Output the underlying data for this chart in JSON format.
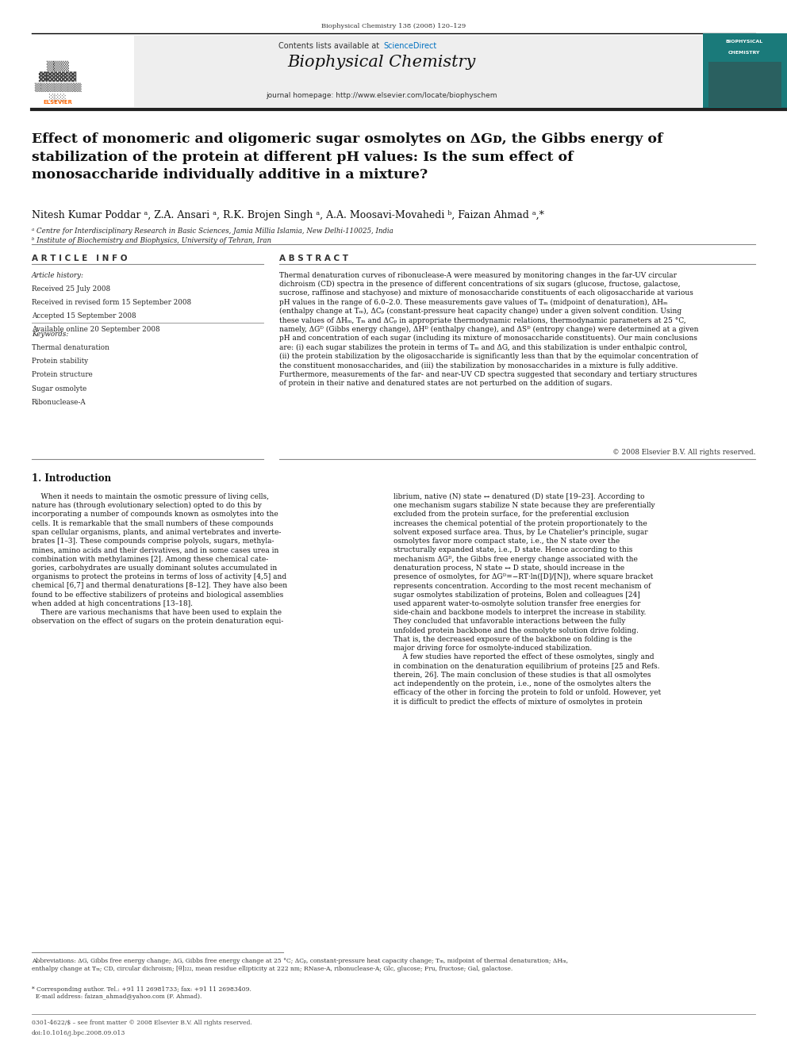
{
  "page_width": 9.92,
  "page_height": 13.23,
  "bg_color": "#ffffff",
  "journal_header": "Biophysical Chemistry 138 (2008) 120–129",
  "journal_name": "Biophysical Chemistry",
  "contents_text": "Contents lists available at ScienceDirect",
  "journal_url": "journal homepage: http://www.elsevier.com/locate/biophyschem",
  "title": "Effect of monomeric and oligomeric sugar osmolytes on ΔGᴅ, the Gibbs energy of\nstabilization of the protein at different pH values: Is the sum effect of\nmonosaccharide individually additive in a mixture?",
  "authors": "Nitesh Kumar Poddar ᵃ, Z.A. Ansari ᵃ, R.K. Brojen Singh ᵃ, A.A. Moosavi-Movahedi ᵇ, Faizan Ahmad ᵃ,*",
  "affil_a": "ᵃ Centre for Interdisciplinary Research in Basic Sciences, Jamia Millia Islamia, New Delhi-110025, India",
  "affil_b": "ᵇ Institute of Biochemistry and Biophysics, University of Tehran, Iran",
  "article_info_header": "A R T I C L E   I N F O",
  "abstract_header": "A B S T R A C T",
  "article_history_label": "Article history:",
  "received1": "Received 25 July 2008",
  "received2": "Received in revised form 15 September 2008",
  "accepted": "Accepted 15 September 2008",
  "available": "Available online 20 September 2008",
  "keywords_label": "Keywords:",
  "keyword1": "Thermal denaturation",
  "keyword2": "Protein stability",
  "keyword3": "Protein structure",
  "keyword4": "Sugar osmolyte",
  "keyword5": "Ribonuclease-A",
  "abstract_text": "Thermal denaturation curves of ribonuclease-A were measured by monitoring changes in the far-UV circular\ndichroism (CD) spectra in the presence of different concentrations of six sugars (glucose, fructose, galactose,\nsucrose, raffinose and stachyose) and mixture of monosaccharide constituents of each oligosaccharide at various\npH values in the range of 6.0–2.0. These measurements gave values of Tₘ (midpoint of denaturation), ΔHₘ\n(enthalpy change at Tₘ), ΔCₚ (constant-pressure heat capacity change) under a given solvent condition. Using\nthese values of ΔHₘ, Tₘ and ΔCₚ in appropriate thermodynamic relations, thermodynamic parameters at 25 °C,\nnamely, ΔGᴰ (Gibbs energy change), ΔHᴰ (enthalpy change), and ΔSᴰ (entropy change) were determined at a given\npH and concentration of each sugar (including its mixture of monosaccharide constituents). Our main conclusions\nare: (i) each sugar stabilizes the protein in terms of Tₘ and ΔG, and this stabilization is under enthalpic control,\n(ii) the protein stabilization by the oligosaccharide is significantly less than that by the equimolar concentration of\nthe constituent monosaccharides, and (iii) the stabilization by monosaccharides in a mixture is fully additive.\nFurthermore, measurements of the far- and near-UV CD spectra suggested that secondary and tertiary structures\nof protein in their native and denatured states are not perturbed on the addition of sugars.",
  "copyright": "© 2008 Elsevier B.V. All rights reserved.",
  "section1_title": "1. Introduction",
  "intro_col1": "    When it needs to maintain the osmotic pressure of living cells,\nnature has (through evolutionary selection) opted to do this by\nincorporating a number of compounds known as osmolytes into the\ncells. It is remarkable that the small numbers of these compounds\nspan cellular organisms, plants, and animal vertebrates and inverte-\nbrates [1–3]. These compounds comprise polyols, sugars, methyla-\nmines, amino acids and their derivatives, and in some cases urea in\ncombination with methylamines [2]. Among these chemical cate-\ngories, carbohydrates are usually dominant solutes accumulated in\norganisms to protect the proteins in terms of loss of activity [4,5] and\nchemical [6,7] and thermal denaturations [8–12]. They have also been\nfound to be effective stabilizers of proteins and biological assemblies\nwhen added at high concentrations [13–18].\n    There are various mechanisms that have been used to explain the\nobservation on the effect of sugars on the protein denaturation equi-",
  "intro_col2": "librium, native (N) state ↔ denatured (D) state [19–23]. According to\none mechanism sugars stabilize N state because they are preferentially\nexcluded from the protein surface, for the preferential exclusion\nincreases the chemical potential of the protein proportionately to the\nsolvent exposed surface area. Thus, by Le Chatelier's principle, sugar\nosmolytes favor more compact state, i.e., the N state over the\nstructurally expanded state, i.e., D state. Hence according to this\nmechanism ΔGᴰ, the Gibbs free energy change associated with the\ndenaturation process, N state ↔ D state, should increase in the\npresence of osmolytes, for ΔGᴰ=−RT·ln([D]/[N]), where square bracket\nrepresents concentration. According to the most recent mechanism of\nsugar osmolytes stabilization of proteins, Bolen and colleagues [24]\nused apparent water-to-osmolyte solution transfer free energies for\nside-chain and backbone models to interpret the increase in stability.\nThey concluded that unfavorable interactions between the fully\nunfolded protein backbone and the osmolyte solution drive folding.\nThat is, the decreased exposure of the backbone on folding is the\nmajor driving force for osmolyte-induced stabilization.\n    A few studies have reported the effect of these osmolytes, singly and\nin combination on the denaturation equilibrium of proteins [25 and Refs.\ntherein, 26]. The main conclusion of these studies is that all osmolytes\nact independently on the protein, i.e., none of the osmolytes alters the\nefficacy of the other in forcing the protein to fold or unfold. However, yet\nit is difficult to predict the effects of mixture of osmolytes in protein",
  "footnote_abbrev": "Abbreviations: ΔG, Gibbs free energy change; ΔG, Gibbs free energy change at 25 °C; ΔCₚ, constant-pressure heat capacity change; Tₘ, midpoint of thermal denaturation; ΔHₘ,\nenthalpy change at Tₘ; CD, circular dichroism; [θ]₂₂₂, mean residue ellipticity at 222 nm; RNase-A, ribonuclease-A; Glc, glucose; Fru, fructose; Gal, galactose.",
  "footnote_corr": "* Corresponding author. Tel.: +91 11 26981733; fax: +91 11 26983409.\n  E-mail address: faizan_ahmad@yahoo.com (F. Ahmad).",
  "footer_left": "0301-4622/$ – see front matter © 2008 Elsevier B.V. All rights reserved.",
  "footer_doi": "doi:10.1016/j.bpc.2008.09.013",
  "header_bg": "#eeeeee",
  "sd_color": "#0070c0",
  "teal_bg": "#1a7a7a",
  "elsevier_orange": "#ff6600"
}
